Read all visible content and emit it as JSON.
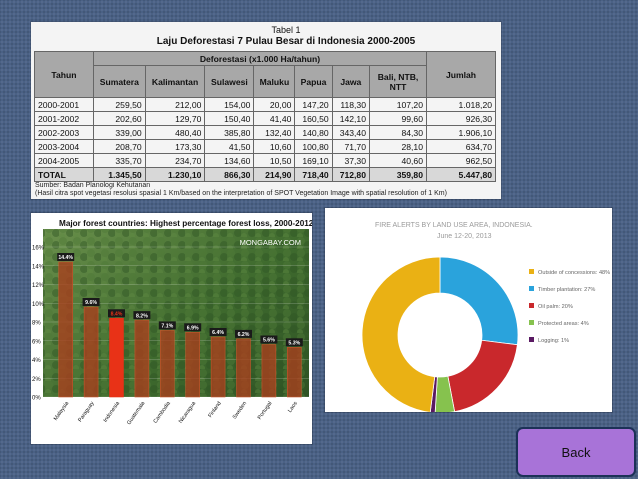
{
  "table_panel": {
    "title_line1": "Tabel 1",
    "title_line2": "Laju Deforestasi 7 Pulau Besar di Indonesia 2000-2005",
    "header_tahun": "Tahun",
    "header_group": "Deforestasi (x1.000 Ha/tahun)",
    "header_jumlah": "Jumlah",
    "columns": [
      "Sumatera",
      "Kalimantan",
      "Sulawesi",
      "Maluku",
      "Papua",
      "Jawa",
      "Bali, NTB, NTT"
    ],
    "rows": [
      {
        "year": "2000-2001",
        "values": [
          "259,50",
          "212,00",
          "154,00",
          "20,00",
          "147,20",
          "118,30",
          "107,20"
        ],
        "total": "1.018,20"
      },
      {
        "year": "2001-2002",
        "values": [
          "202,60",
          "129,70",
          "150,40",
          "41,40",
          "160,50",
          "142,10",
          "99,60"
        ],
        "total": "926,30"
      },
      {
        "year": "2002-2003",
        "values": [
          "339,00",
          "480,40",
          "385,80",
          "132,40",
          "140,80",
          "343,40",
          "84,30"
        ],
        "total": "1.906,10"
      },
      {
        "year": "2003-2004",
        "values": [
          "208,70",
          "173,30",
          "41,50",
          "10,60",
          "100,80",
          "71,70",
          "28,10"
        ],
        "total": "634,70"
      },
      {
        "year": "2004-2005",
        "values": [
          "335,70",
          "234,70",
          "134,60",
          "10,50",
          "169,10",
          "37,30",
          "40,60"
        ],
        "total": "962,50"
      }
    ],
    "total_row": {
      "year": "TOTAL",
      "values": [
        "1.345,50",
        "1.230,10",
        "866,30",
        "214,90",
        "718,40",
        "712,80",
        "359,80"
      ],
      "total": "5.447,80"
    },
    "source_line1": "Sumber: Badan Planologi Kehutanan",
    "source_line2": "(Hasil citra spot vegetasi resolusi spasial 1 Km/based on the interpretation of SPOT Vegetation Image with spatial resolution of 1 Km)"
  },
  "chart_data": [
    {
      "type": "bar",
      "title": "Major forest countries: Highest percentage forest loss, 2000-2012",
      "watermark": "MONGABAY.COM",
      "categories": [
        "Malaysia",
        "Paraguay",
        "Indonesia",
        "Guatemala",
        "Cambodia",
        "Nicaragua",
        "Finland",
        "Sweden",
        "Portugal",
        "Laos"
      ],
      "values": [
        14.4,
        9.6,
        8.4,
        8.2,
        7.1,
        6.9,
        6.4,
        6.2,
        5.6,
        5.3
      ],
      "value_labels": [
        "14.4%",
        "9.6%",
        "8.4%",
        "8.2%",
        "7.1%",
        "6.9%",
        "6.4%",
        "6.2%",
        "5.6%",
        "5.3%"
      ],
      "highlight": "Indonesia",
      "yticks": [
        "0%",
        "2%",
        "4%",
        "6%",
        "8%",
        "10%",
        "12%",
        "14%",
        "16%"
      ],
      "ylim": [
        0,
        16
      ],
      "grid": true,
      "colors": {
        "bar": "#a8401e",
        "highlight": "#e83217",
        "label_bg": "#1a1a1a",
        "label_fg": "#ffffff"
      }
    },
    {
      "type": "pie",
      "subtype": "donut",
      "title": "FIRE ALERTS BY LAND USE AREA, INDONESIA.",
      "subtitle": "June 12-20, 2013",
      "categories": [
        "Outside of concessions: 48%",
        "Timber plantation: 27%",
        "Oil palm: 20%",
        "Protected areas: 4%",
        "Logging: 1%"
      ],
      "values": [
        48,
        27,
        20,
        4,
        1
      ],
      "colors": [
        "#eab114",
        "#2aa3dc",
        "#c9282c",
        "#86c24e",
        "#5a1a63"
      ],
      "legend_position": "right"
    }
  ],
  "back_button": {
    "label": "Back",
    "color": "#a873d8"
  }
}
